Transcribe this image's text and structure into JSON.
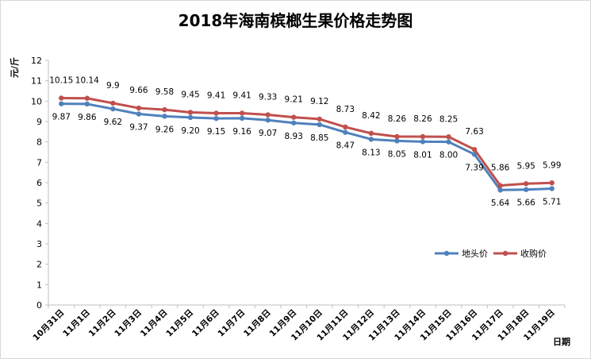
{
  "chart_data": {
    "type": "line",
    "title": "2018年海南槟榔生果价格走势图",
    "ylabel": "元/斤",
    "xlabel": "日期",
    "ylim": [
      0,
      12
    ],
    "yticks": [
      "0",
      "1",
      "2",
      "3",
      "4",
      "5",
      "6",
      "7",
      "8",
      "9",
      "10",
      "11",
      "12"
    ],
    "grid": false,
    "legend": "inside-right",
    "categories": [
      "10月31日",
      "11月1日",
      "11月2日",
      "11月3日",
      "11月4日",
      "11月5日",
      "11月6日",
      "11月7日",
      "11月8日",
      "11月9日",
      "11月10日",
      "11月11日",
      "11月12日",
      "11月13日",
      "11月14日",
      "11月15日",
      "11月16日",
      "11月17日",
      "11月18日",
      "11月19日"
    ],
    "series": [
      {
        "name": "地头价",
        "color": "#4f81bd",
        "values": [
          9.87,
          9.86,
          9.62,
          9.37,
          9.26,
          9.2,
          9.15,
          9.16,
          9.07,
          8.93,
          8.85,
          8.47,
          8.13,
          8.05,
          8.01,
          8.0,
          7.39,
          5.64,
          5.66,
          5.71
        ],
        "labels": [
          "9.87",
          "9.86",
          "9.62",
          "9.37",
          "9.26",
          "9.20",
          "9.15",
          "9.16",
          "9.07",
          "8.93",
          "8.85",
          "8.47",
          "8.13",
          "8.05",
          "8.01",
          "8.00",
          "7.39",
          "5.64",
          "5.66",
          "5.71"
        ]
      },
      {
        "name": "收购价",
        "color": "#c0504d",
        "values": [
          10.15,
          10.14,
          9.9,
          9.66,
          9.58,
          9.45,
          9.41,
          9.41,
          9.33,
          9.21,
          9.12,
          8.73,
          8.42,
          8.26,
          8.26,
          8.25,
          7.63,
          5.86,
          5.95,
          5.99
        ],
        "labels": [
          "10.15",
          "10.14",
          "9.9",
          "9.66",
          "9.58",
          "9.45",
          "9.41",
          "9.41",
          "9.33",
          "9.21",
          "9.12",
          "8.73",
          "8.42",
          "8.26",
          "8.26",
          "8.25",
          "7.63",
          "5.86",
          "5.95",
          "5.99"
        ]
      }
    ]
  }
}
